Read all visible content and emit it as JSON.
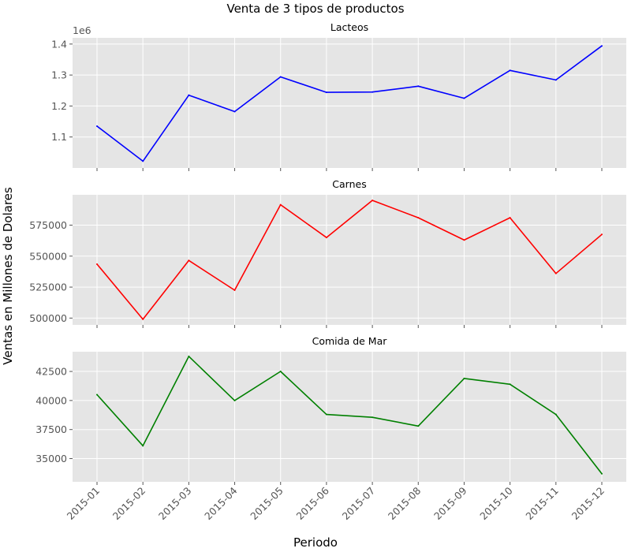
{
  "chart_data": {
    "type": "line",
    "title": "Venta de 3 tipos de productos",
    "xlabel": "Periodo",
    "ylabel": "Ventas en Millones de Dolares",
    "categories": [
      "2015-01",
      "2015-02",
      "2015-03",
      "2015-04",
      "2015-05",
      "2015-06",
      "2015-07",
      "2015-08",
      "2015-09",
      "2015-10",
      "2015-11",
      "2015-12"
    ],
    "grid": true,
    "subplots": [
      {
        "title": "Lacteos",
        "color": "#0000ff",
        "y_offset_label": "1e6",
        "ylim": [
          1.0,
          1.42
        ],
        "yticks": [
          1.1,
          1.2,
          1.3,
          1.4
        ],
        "ytick_labels": [
          "1.1",
          "1.2",
          "1.3",
          "1.4"
        ],
        "values": [
          1.135,
          1.022,
          1.235,
          1.182,
          1.294,
          1.244,
          1.245,
          1.264,
          1.225,
          1.315,
          1.284,
          1.394
        ]
      },
      {
        "title": "Carnes",
        "color": "#ff0000",
        "ylim": [
          494500,
          599500
        ],
        "yticks": [
          500000,
          525000,
          550000,
          575000
        ],
        "ytick_labels": [
          "500000",
          "525000",
          "550000",
          "575000"
        ],
        "values": [
          543500,
          499000,
          546500,
          522500,
          591500,
          565000,
          595000,
          581000,
          563000,
          581000,
          536000,
          567500
        ]
      },
      {
        "title": "Comida de Mar",
        "color": "#008000",
        "ylim": [
          33000,
          44200
        ],
        "yticks": [
          35000,
          37500,
          40000,
          42500
        ],
        "ytick_labels": [
          "35000",
          "37500",
          "40000",
          "42500"
        ],
        "values": [
          40500,
          36100,
          43800,
          40000,
          42500,
          38800,
          38550,
          37800,
          41900,
          41400,
          38800,
          33700
        ]
      }
    ]
  }
}
